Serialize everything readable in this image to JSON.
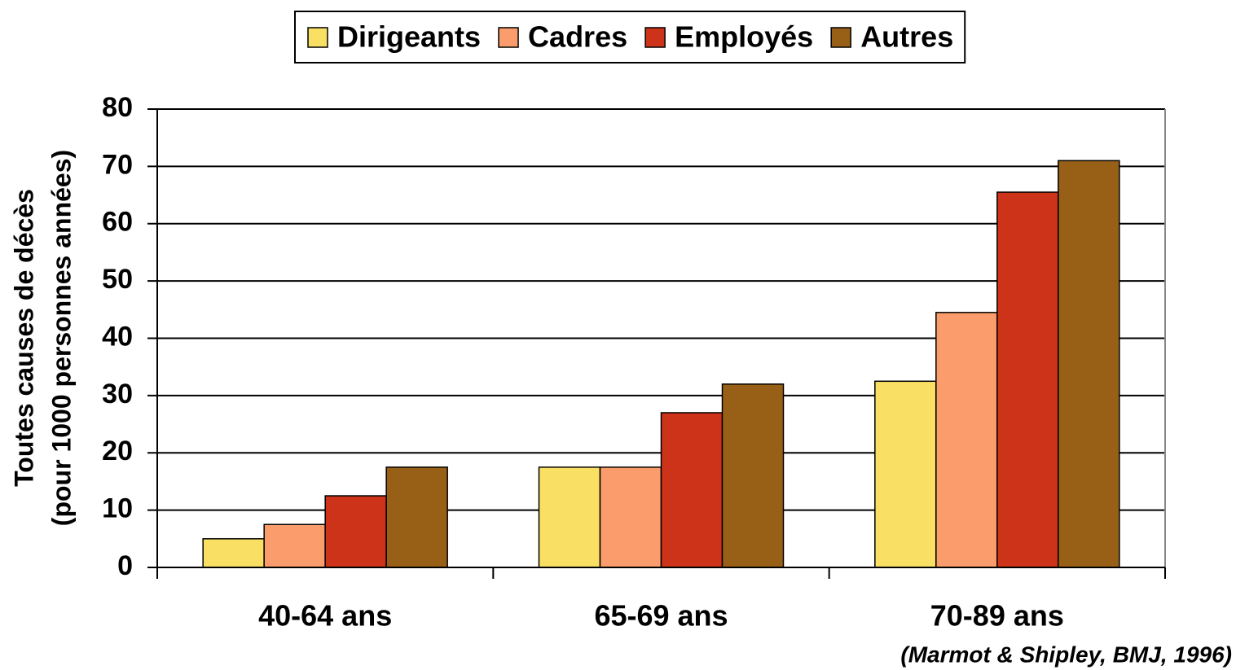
{
  "chart_data": {
    "type": "bar",
    "categories": [
      "40-64 ans",
      "65-69 ans",
      "70-89 ans"
    ],
    "series": [
      {
        "name": "Dirigeants",
        "color": "#f9df63",
        "values": [
          5,
          17.5,
          32.5
        ]
      },
      {
        "name": "Cadres",
        "color": "#fa9c6b",
        "values": [
          7.5,
          17.5,
          44.5
        ]
      },
      {
        "name": "Employés",
        "color": "#cc3318",
        "values": [
          12.5,
          27,
          65.5
        ]
      },
      {
        "name": "Autres",
        "color": "#976016",
        "values": [
          17.5,
          32,
          71
        ]
      }
    ],
    "ylabel": [
      "Toutes causes de décès",
      "(pour 1000 personnes années)"
    ],
    "source": "(Marmot & Shipley, BMJ, 1996)",
    "ylim": [
      0,
      80
    ],
    "yticks": [
      0,
      10,
      20,
      30,
      40,
      50,
      60,
      70,
      80
    ],
    "grid": true,
    "legend": "top"
  }
}
